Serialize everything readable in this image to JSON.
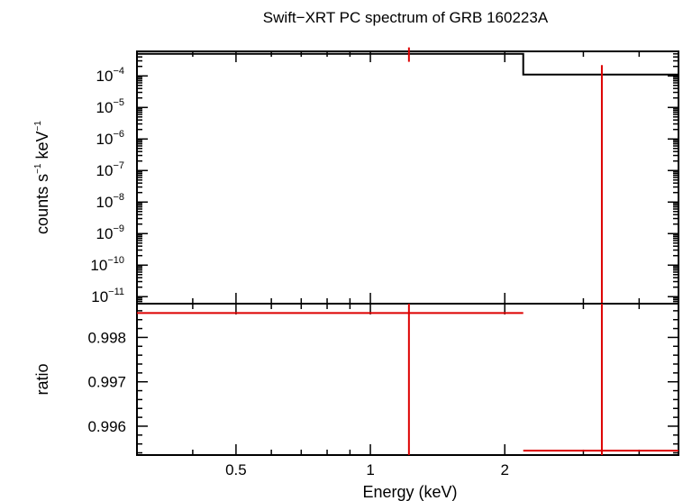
{
  "chart_data": {
    "type": "line",
    "title": "Swift−XRT PC spectrum of GRB 160223A",
    "xlabel": "Energy (keV)",
    "xscale": "log",
    "xlim": [
      0.3,
      4.9
    ],
    "xticks": [
      {
        "value": 0.5,
        "label": "0.5"
      },
      {
        "value": 1,
        "label": "1"
      },
      {
        "value": 2,
        "label": "2"
      }
    ],
    "panels": [
      {
        "id": "spectrum",
        "ylabel": "counts s⁻¹ keV⁻¹",
        "ylabel_parts": [
          "counts s",
          "−1",
          " keV",
          "−1"
        ],
        "yscale": "log",
        "ylim": [
          6e-12,
          0.0006
        ],
        "yticks": [
          {
            "value": 0.0001,
            "base": "10",
            "exp": "−4"
          },
          {
            "value": 1e-05,
            "base": "10",
            "exp": "−5"
          },
          {
            "value": 1e-06,
            "base": "10",
            "exp": "−6"
          },
          {
            "value": 1e-07,
            "base": "10",
            "exp": "−7"
          },
          {
            "value": 1e-08,
            "base": "10",
            "exp": "−8"
          },
          {
            "value": 1e-09,
            "base": "10",
            "exp": "−9"
          },
          {
            "value": 1e-10,
            "base": "10",
            "exp": "−10"
          },
          {
            "value": 1e-11,
            "base": "10",
            "exp": "−11"
          }
        ],
        "model": {
          "color": "#000000",
          "steps": [
            {
              "x0": 0.3,
              "x1": 2.2,
              "y": 0.0005
            },
            {
              "x0": 2.2,
              "x1": 4.9,
              "y": 0.00011
            }
          ]
        },
        "data": {
          "color": "#dd0000",
          "points": [
            {
              "x": 1.22,
              "y": 0.0005,
              "yerr_low": 0.00028,
              "yerr_high": 0.0008
            },
            {
              "x": 3.3,
              "y": 0.00011,
              "yerr_low": 6e-12,
              "yerr_high": 0.00022
            }
          ]
        }
      },
      {
        "id": "ratio",
        "ylabel": "ratio",
        "yscale": "linear",
        "ylim": [
          0.99535,
          0.99876
        ],
        "yticks": [
          {
            "value": 0.996,
            "label": "0.996"
          },
          {
            "value": 0.997,
            "label": "0.997"
          },
          {
            "value": 0.998,
            "label": "0.998"
          }
        ],
        "data": {
          "color": "#dd0000",
          "points": [
            {
              "x0": 0.3,
              "x1": 2.2,
              "xc": 1.22,
              "y": 0.99855,
              "ylow": 0.99535,
              "yhigh": 0.99876
            },
            {
              "x0": 2.2,
              "x1": 4.9,
              "xc": 3.3,
              "y": 0.99545,
              "ylow": 0.99535,
              "yhigh": 0.99876
            }
          ]
        }
      }
    ]
  }
}
